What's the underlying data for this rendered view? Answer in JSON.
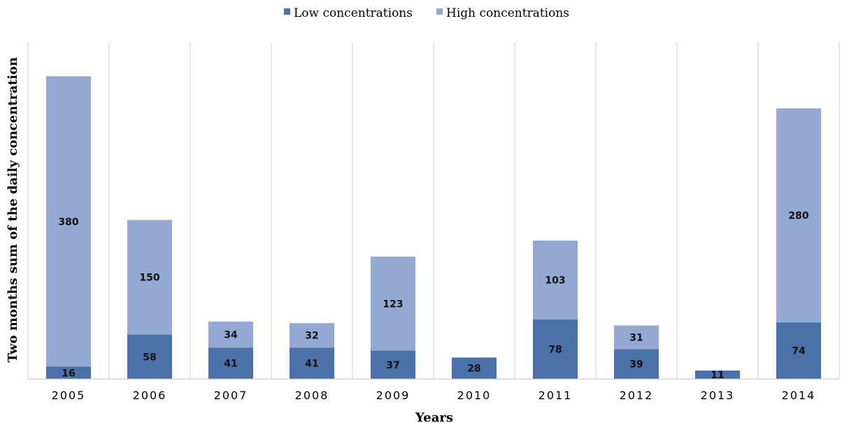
{
  "chart_data": {
    "type": "bar",
    "stacked": true,
    "categories": [
      "2005",
      "2006",
      "2007",
      "2008",
      "2009",
      "2010",
      "2011",
      "2012",
      "2013",
      "2014"
    ],
    "series": [
      {
        "name": "Low concentrations",
        "color": "#4a72a8",
        "values": [
          16,
          58,
          41,
          41,
          37,
          28,
          78,
          39,
          11,
          74
        ]
      },
      {
        "name": "High concentrations",
        "color": "#93a9d1",
        "values": [
          380,
          150,
          34,
          32,
          123,
          0,
          103,
          31,
          0,
          280
        ]
      }
    ],
    "data_labels": [
      [
        "16",
        "58",
        "41",
        "41",
        "37",
        "28",
        "78",
        "39",
        "11",
        "74"
      ],
      [
        "380",
        "150",
        "34",
        "32",
        "123",
        "",
        "103",
        "31",
        "",
        "280"
      ]
    ],
    "title": "",
    "xlabel": "Years",
    "ylabel": "Two  months sum of the daily concentration",
    "ylim": [
      0,
      450
    ],
    "grid": "vertical category separators",
    "legend_position": "top-center"
  }
}
